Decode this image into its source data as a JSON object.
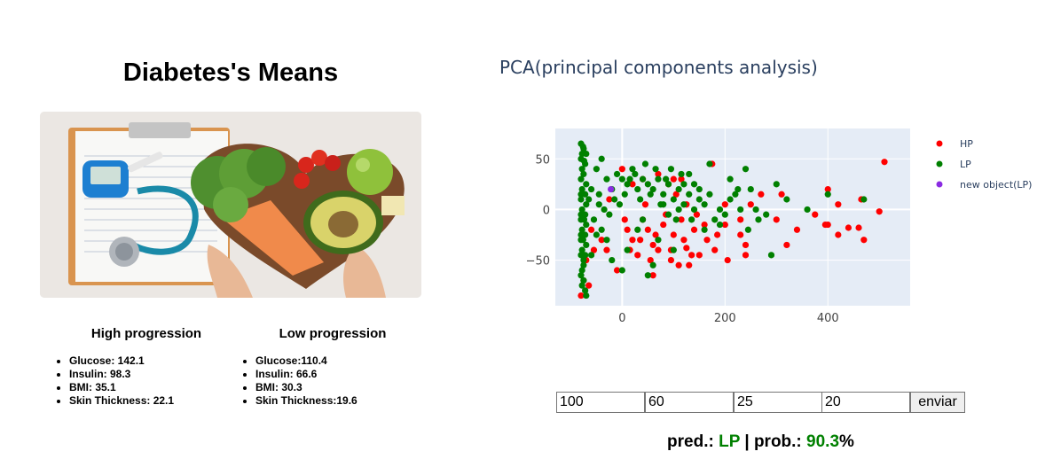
{
  "left": {
    "title": "Diabetes's Means",
    "high": {
      "heading": "High progression",
      "items": [
        "Glucose: 142.1",
        "Insulin: 98.3",
        "BMI: 35.1",
        "Skin Thickness: 22.1"
      ]
    },
    "low": {
      "heading": "Low progression",
      "items": [
        "Glucose:110.4",
        "Insulin: 66.6",
        "BMI: 30.3",
        "Skin Thickness:19.6"
      ]
    }
  },
  "plot": {
    "title": "PCA(principal components analysis)"
  },
  "chart_data": {
    "type": "scatter",
    "title": "PCA(principal components analysis)",
    "xlim": [
      -130,
      560
    ],
    "ylim": [
      -95,
      80
    ],
    "x_ticks": [
      0,
      200,
      400
    ],
    "y_ticks": [
      50,
      0,
      -50
    ],
    "x_tick_labels": [
      "0",
      "200",
      "400"
    ],
    "y_tick_labels": [
      "50",
      "0",
      "−50"
    ],
    "grid": true,
    "legend_position": "top-right",
    "series": [
      {
        "name": "HP",
        "color": "#ff0000",
        "points": [
          [
            510,
            47
          ],
          [
            500,
            -2
          ],
          [
            470,
            -30
          ],
          [
            465,
            10
          ],
          [
            460,
            -18
          ],
          [
            440,
            -18
          ],
          [
            420,
            5
          ],
          [
            400,
            -15
          ],
          [
            395,
            -15
          ],
          [
            400,
            20
          ],
          [
            320,
            -35
          ],
          [
            310,
            15
          ],
          [
            240,
            -45
          ],
          [
            230,
            -10
          ],
          [
            250,
            5
          ],
          [
            205,
            -50
          ],
          [
            200,
            -15
          ],
          [
            180,
            -40
          ],
          [
            175,
            45
          ],
          [
            165,
            -30
          ],
          [
            150,
            -45
          ],
          [
            140,
            -20
          ],
          [
            130,
            -55
          ],
          [
            125,
            -38
          ],
          [
            115,
            -10
          ],
          [
            110,
            -55
          ],
          [
            100,
            -25
          ],
          [
            95,
            -50
          ],
          [
            85,
            -5
          ],
          [
            70,
            -40
          ],
          [
            60,
            -35
          ],
          [
            50,
            -20
          ],
          [
            40,
            -10
          ],
          [
            30,
            -45
          ],
          [
            20,
            -30
          ],
          [
            10,
            -20
          ],
          [
            -10,
            -60
          ],
          [
            -30,
            -40
          ],
          [
            -40,
            -30
          ],
          [
            -60,
            -20
          ],
          [
            -70,
            -50
          ],
          [
            -75,
            -70
          ],
          [
            -80,
            -85
          ],
          [
            0,
            40
          ],
          [
            20,
            25
          ],
          [
            40,
            30
          ],
          [
            70,
            35
          ],
          [
            90,
            25
          ],
          [
            100,
            30
          ],
          [
            115,
            30
          ],
          [
            60,
            -65
          ],
          [
            145,
            -5
          ],
          [
            230,
            -25
          ],
          [
            200,
            5
          ],
          [
            270,
            15
          ],
          [
            300,
            -10
          ],
          [
            120,
            -30
          ],
          [
            160,
            -15
          ],
          [
            55,
            -50
          ],
          [
            35,
            -30
          ],
          [
            5,
            -10
          ],
          [
            -25,
            10
          ],
          [
            15,
            -40
          ],
          [
            80,
            -15
          ],
          [
            185,
            -25
          ],
          [
            135,
            -45
          ],
          [
            105,
            15
          ],
          [
            45,
            5
          ],
          [
            65,
            -25
          ],
          [
            95,
            -40
          ],
          [
            -55,
            -40
          ],
          [
            -65,
            -75
          ],
          [
            340,
            -20
          ],
          [
            375,
            -5
          ],
          [
            420,
            -25
          ],
          [
            240,
            -35
          ],
          [
            125,
            5
          ]
        ]
      },
      {
        "name": "LP",
        "color": "#008000",
        "points": [
          [
            -80,
            65
          ],
          [
            -75,
            60
          ],
          [
            -80,
            50
          ],
          [
            -78,
            40
          ],
          [
            -80,
            30
          ],
          [
            -78,
            20
          ],
          [
            -80,
            10
          ],
          [
            -78,
            0
          ],
          [
            -80,
            -10
          ],
          [
            -78,
            -20
          ],
          [
            -80,
            -30
          ],
          [
            -78,
            -40
          ],
          [
            -75,
            -50
          ],
          [
            -78,
            -60
          ],
          [
            -75,
            -70
          ],
          [
            -72,
            -80
          ],
          [
            -70,
            -85
          ],
          [
            -75,
            -55
          ],
          [
            -72,
            -45
          ],
          [
            -70,
            -35
          ],
          [
            -72,
            -25
          ],
          [
            -70,
            -15
          ],
          [
            -72,
            -5
          ],
          [
            -70,
            5
          ],
          [
            -72,
            15
          ],
          [
            -70,
            25
          ],
          [
            -75,
            35
          ],
          [
            -72,
            45
          ],
          [
            -70,
            55
          ],
          [
            -50,
            40
          ],
          [
            -40,
            50
          ],
          [
            -30,
            30
          ],
          [
            -20,
            20
          ],
          [
            -10,
            35
          ],
          [
            0,
            30
          ],
          [
            10,
            25
          ],
          [
            20,
            40
          ],
          [
            30,
            20
          ],
          [
            40,
            30
          ],
          [
            50,
            25
          ],
          [
            60,
            20
          ],
          [
            70,
            30
          ],
          [
            80,
            15
          ],
          [
            90,
            25
          ],
          [
            100,
            10
          ],
          [
            110,
            20
          ],
          [
            120,
            5
          ],
          [
            130,
            15
          ],
          [
            140,
            0
          ],
          [
            150,
            20
          ],
          [
            160,
            5
          ],
          [
            170,
            15
          ],
          [
            180,
            -10
          ],
          [
            190,
            0
          ],
          [
            200,
            -5
          ],
          [
            210,
            10
          ],
          [
            220,
            15
          ],
          [
            230,
            0
          ],
          [
            240,
            40
          ],
          [
            250,
            20
          ],
          [
            260,
            0
          ],
          [
            280,
            -5
          ],
          [
            290,
            -45
          ],
          [
            300,
            25
          ],
          [
            320,
            10
          ],
          [
            360,
            0
          ],
          [
            400,
            15
          ],
          [
            470,
            10
          ],
          [
            -20,
            -50
          ],
          [
            0,
            -60
          ],
          [
            10,
            -40
          ],
          [
            30,
            -20
          ],
          [
            40,
            -10
          ],
          [
            50,
            -65
          ],
          [
            60,
            -55
          ],
          [
            70,
            -30
          ],
          [
            80,
            5
          ],
          [
            90,
            -5
          ],
          [
            100,
            -40
          ],
          [
            110,
            0
          ],
          [
            120,
            25
          ],
          [
            130,
            35
          ],
          [
            140,
            25
          ],
          [
            150,
            10
          ],
          [
            170,
            45
          ],
          [
            190,
            -15
          ],
          [
            210,
            30
          ],
          [
            -60,
            20
          ],
          [
            -45,
            15
          ],
          [
            -35,
            0
          ],
          [
            -25,
            -5
          ],
          [
            -15,
            10
          ],
          [
            -5,
            5
          ],
          [
            5,
            15
          ],
          [
            15,
            30
          ],
          [
            25,
            35
          ],
          [
            35,
            10
          ],
          [
            45,
            45
          ],
          [
            55,
            15
          ],
          [
            65,
            40
          ],
          [
            75,
            5
          ],
          [
            85,
            30
          ],
          [
            95,
            40
          ],
          [
            105,
            -10
          ],
          [
            115,
            35
          ],
          [
            -55,
            -10
          ],
          [
            -40,
            -20
          ],
          [
            -30,
            -30
          ],
          [
            -50,
            -25
          ],
          [
            -60,
            -45
          ],
          [
            -45,
            5
          ],
          [
            -65,
            10
          ],
          [
            160,
            -20
          ],
          [
            135,
            -10
          ],
          [
            245,
            -20
          ],
          [
            265,
            -10
          ],
          [
            225,
            20
          ],
          [
            -80,
            -5
          ],
          [
            -80,
            15
          ],
          [
            -80,
            -25
          ],
          [
            -80,
            -45
          ],
          [
            -80,
            -65
          ],
          [
            -78,
            55
          ],
          [
            -78,
            -75
          ],
          [
            -76,
            62
          ],
          [
            -74,
            48
          ],
          [
            -74,
            -10
          ],
          [
            -76,
            -30
          ]
        ]
      },
      {
        "name": "new object(LP)",
        "color": "#8a2be2",
        "points": [
          [
            -22,
            20
          ]
        ]
      }
    ]
  },
  "form": {
    "inputs": [
      "100",
      "60",
      "25",
      "20"
    ],
    "submit_label": "enviar"
  },
  "result": {
    "pred_label": "pred.:",
    "pred_value": "LP",
    "separator": "|",
    "prob_label": "prob.:",
    "prob_value": "90.3",
    "prob_unit": "%"
  }
}
